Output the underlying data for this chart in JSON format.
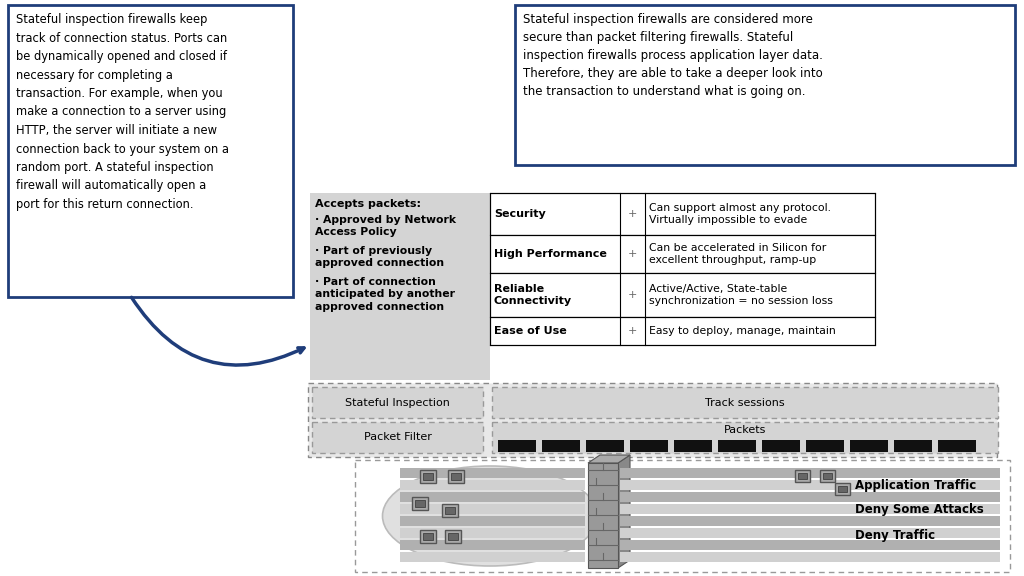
{
  "bg_color": "#ffffff",
  "left_box_text": "Stateful inspection firewalls keep\ntrack of connection status. Ports can\nbe dynamically opened and closed if\nnecessary for completing a\ntransaction. For example, when you\nmake a connection to a server using\nHTTP, the server will initiate a new\nconnection back to your system on a\nrandom port. A stateful inspection\nfirewall will automatically open a\nport for this return connection.",
  "right_box_text": "Stateful inspection firewalls are considered more\nsecure than packet filtering firewalls. Stateful\ninspection firewalls process application layer data.\nTherefore, they are able to take a deeper look into\nthe transaction to understand what is going on.",
  "accepts_title": "Accepts packets:",
  "accepts_bullets": [
    "Approved by Network\nAccess Policy",
    "Part of previously\napproved connection",
    "Part of connection\nanticipated by another\napproved connection"
  ],
  "table_rows": [
    [
      "Security",
      "+",
      "Can support almost any protocol.\nVirtually impossible to evade"
    ],
    [
      "High Performance",
      "+",
      "Can be accelerated in Silicon for\nexcellent throughput, ramp-up"
    ],
    [
      "Reliable\nConnectivity",
      "+",
      "Active/Active, State-table\nsynchronization = no session loss"
    ],
    [
      "Ease of Use",
      "+",
      "Easy to deploy, manage, maintain"
    ]
  ],
  "layer_left_labels": [
    "Stateful Inspection",
    "Packet Filter"
  ],
  "layer_right_labels": [
    "Track sessions",
    "Packets"
  ],
  "traffic_labels": [
    "Application Traffic",
    "Deny Some Attacks",
    "Deny Traffic"
  ],
  "arrow_color": "#1f3d7a",
  "box_border_color": "#1f3d7a",
  "accepts_bg": "#d4d4d4",
  "layer_bg": "#d4d4d4"
}
